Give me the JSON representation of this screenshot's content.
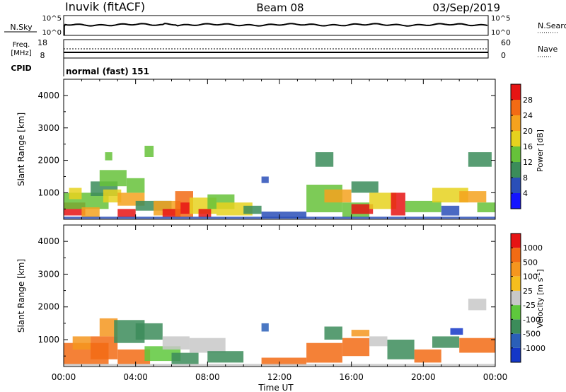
{
  "header": {
    "station": "Inuvik (fitACF)",
    "beam": "Beam 08",
    "date": "03/Sep/2019"
  },
  "strip": {
    "nsky_label": "N.Sky",
    "nsky_tick_top": "10^5",
    "nsky_tick_bottom": "10^0",
    "nsearch_label": "N.Search",
    "nsearch_tick_top": "10^5",
    "nsearch_tick_bottom": "10^0",
    "freq_label_1": "Freq.",
    "freq_label_2": "[MHz]",
    "freq_tick_top": "18",
    "freq_tick_bottom": "8",
    "nave_label": "Nave",
    "nave_tick_top": "60",
    "nave_tick_bottom": "0",
    "cpid_label": "CPID",
    "cpid_value": "normal (fast) 151"
  },
  "colors": {
    "power": [
      "#1414ff",
      "#2a4fb8",
      "#3b8c5a",
      "#66c23a",
      "#e6d21e",
      "#f5a21e",
      "#f26b14",
      "#e61414"
    ],
    "velocity": [
      "#1437c8",
      "#2a5fb8",
      "#3c8c5a",
      "#5ec83c",
      "#c8c8c8",
      "#f5be1e",
      "#f5961e",
      "#f26b14",
      "#e61414"
    ]
  },
  "colorbars": {
    "power": {
      "label": "Power [dB]",
      "ticks": [
        "28",
        "24",
        "20",
        "16",
        "12",
        "8",
        "4"
      ]
    },
    "velocity": {
      "label_main": "Velocity  [m s",
      "label_sup": "-1",
      "label_end": "]",
      "ticks": [
        "1000",
        "500",
        "100",
        "25",
        "-25",
        "-100",
        "-500",
        "-1000"
      ]
    }
  },
  "chart_data": [
    {
      "type": "heatmap",
      "title": "Power",
      "xlabel": "Time UT",
      "ylabel": "Slant Range [km]",
      "x_ticks": [
        "00:00",
        "04:00",
        "08:00",
        "12:00",
        "16:00",
        "20:00",
        "00:00"
      ],
      "xlim": [
        0,
        24
      ],
      "ylim": [
        180,
        4500
      ],
      "y_ticks": [
        1000,
        2000,
        3000,
        4000
      ],
      "colorscale": "power",
      "cells": [
        {
          "t0": 0.0,
          "t1": 1.2,
          "r0": 300,
          "r1": 700,
          "c": 7
        },
        {
          "t0": 0.0,
          "t1": 2.5,
          "r0": 500,
          "r1": 1000,
          "c": 3
        },
        {
          "t0": 0.3,
          "t1": 1.0,
          "r0": 800,
          "r1": 1150,
          "c": 4
        },
        {
          "t0": 1.0,
          "t1": 2.0,
          "r0": 250,
          "r1": 550,
          "c": 5
        },
        {
          "t0": 1.5,
          "t1": 3.0,
          "r0": 900,
          "r1": 1350,
          "c": 2
        },
        {
          "t0": 2.0,
          "t1": 3.5,
          "r0": 1200,
          "r1": 1700,
          "c": 3
        },
        {
          "t0": 2.2,
          "t1": 3.2,
          "r0": 700,
          "r1": 1100,
          "c": 4
        },
        {
          "t0": 2.3,
          "t1": 2.7,
          "r0": 2000,
          "r1": 2250,
          "c": 3
        },
        {
          "t0": 3.0,
          "t1": 4.5,
          "r0": 600,
          "r1": 1000,
          "c": 5
        },
        {
          "t0": 3.0,
          "t1": 4.0,
          "r0": 250,
          "r1": 500,
          "c": 7
        },
        {
          "t0": 3.5,
          "t1": 4.5,
          "r0": 1000,
          "r1": 1450,
          "c": 3
        },
        {
          "t0": 4.0,
          "t1": 6.0,
          "r0": 450,
          "r1": 750,
          "c": 2
        },
        {
          "t0": 4.5,
          "t1": 5.0,
          "r0": 2100,
          "r1": 2450,
          "c": 3
        },
        {
          "t0": 5.0,
          "t1": 6.5,
          "r0": 300,
          "r1": 750,
          "c": 5
        },
        {
          "t0": 5.5,
          "t1": 6.5,
          "r0": 250,
          "r1": 500,
          "c": 7
        },
        {
          "t0": 6.2,
          "t1": 7.2,
          "r0": 250,
          "r1": 1050,
          "c": 6
        },
        {
          "t0": 6.5,
          "t1": 7.0,
          "r0": 350,
          "r1": 700,
          "c": 7
        },
        {
          "t0": 7.0,
          "t1": 8.5,
          "r0": 350,
          "r1": 850,
          "c": 4
        },
        {
          "t0": 7.5,
          "t1": 8.2,
          "r0": 250,
          "r1": 500,
          "c": 7
        },
        {
          "t0": 8.0,
          "t1": 9.5,
          "r0": 500,
          "r1": 950,
          "c": 3
        },
        {
          "t0": 8.5,
          "t1": 10.5,
          "r0": 300,
          "r1": 700,
          "c": 4
        },
        {
          "t0": 10.0,
          "t1": 11.0,
          "r0": 350,
          "r1": 600,
          "c": 2
        },
        {
          "t0": 11.0,
          "t1": 11.4,
          "r0": 1300,
          "r1": 1500,
          "c": 1
        },
        {
          "t0": 11.0,
          "t1": 13.5,
          "r0": 220,
          "r1": 420,
          "c": 1
        },
        {
          "t0": 13.5,
          "t1": 15.5,
          "r0": 400,
          "r1": 1250,
          "c": 3
        },
        {
          "t0": 14.0,
          "t1": 15.0,
          "r0": 1800,
          "r1": 2250,
          "c": 2
        },
        {
          "t0": 14.5,
          "t1": 16.0,
          "r0": 700,
          "r1": 1100,
          "c": 5
        },
        {
          "t0": 15.5,
          "t1": 17.0,
          "r0": 250,
          "r1": 700,
          "c": 3
        },
        {
          "t0": 16.0,
          "t1": 17.2,
          "r0": 350,
          "r1": 650,
          "c": 7
        },
        {
          "t0": 16.0,
          "t1": 17.5,
          "r0": 1000,
          "r1": 1350,
          "c": 2
        },
        {
          "t0": 17.0,
          "t1": 18.5,
          "r0": 500,
          "r1": 1000,
          "c": 4
        },
        {
          "t0": 18.2,
          "t1": 19.0,
          "r0": 300,
          "r1": 1000,
          "c": 7
        },
        {
          "t0": 19.0,
          "t1": 21.0,
          "r0": 400,
          "r1": 750,
          "c": 3
        },
        {
          "t0": 20.5,
          "t1": 22.5,
          "r0": 700,
          "r1": 1150,
          "c": 4
        },
        {
          "t0": 21.0,
          "t1": 22.0,
          "r0": 300,
          "r1": 600,
          "c": 1
        },
        {
          "t0": 22.0,
          "t1": 23.5,
          "r0": 700,
          "r1": 1050,
          "c": 5
        },
        {
          "t0": 22.5,
          "t1": 23.8,
          "r0": 1800,
          "r1": 2250,
          "c": 2
        },
        {
          "t0": 23.0,
          "t1": 24.0,
          "r0": 400,
          "r1": 700,
          "c": 3
        },
        {
          "t0": 0.0,
          "t1": 24.0,
          "r0": 200,
          "r1": 260,
          "c": 1
        }
      ]
    },
    {
      "type": "heatmap",
      "title": "Velocity",
      "xlabel": "Time UT",
      "ylabel": "Slant Range [km]",
      "x_ticks": [
        "00:00",
        "04:00",
        "08:00",
        "12:00",
        "16:00",
        "20:00",
        "00:00"
      ],
      "xlim": [
        0,
        24
      ],
      "ylim": [
        180,
        4500
      ],
      "y_ticks": [
        1000,
        2000,
        3000,
        4000
      ],
      "colorscale": "velocity",
      "cells": [
        {
          "t0": 0.0,
          "t1": 2.5,
          "r0": 250,
          "r1": 900,
          "c": 7
        },
        {
          "t0": 0.5,
          "t1": 1.5,
          "r0": 700,
          "r1": 1100,
          "c": 6
        },
        {
          "t0": 1.5,
          "t1": 3.0,
          "r0": 400,
          "r1": 1100,
          "c": 7
        },
        {
          "t0": 2.0,
          "t1": 3.0,
          "r0": 1100,
          "r1": 1650,
          "c": 6
        },
        {
          "t0": 2.8,
          "t1": 4.5,
          "r0": 900,
          "r1": 1600,
          "c": 2
        },
        {
          "t0": 3.0,
          "t1": 4.8,
          "r0": 250,
          "r1": 700,
          "c": 7
        },
        {
          "t0": 4.0,
          "t1": 5.5,
          "r0": 1000,
          "r1": 1500,
          "c": 2
        },
        {
          "t0": 4.5,
          "t1": 6.5,
          "r0": 350,
          "r1": 800,
          "c": 3
        },
        {
          "t0": 5.5,
          "t1": 7.0,
          "r0": 700,
          "r1": 1100,
          "c": 4
        },
        {
          "t0": 6.0,
          "t1": 7.5,
          "r0": 250,
          "r1": 600,
          "c": 2
        },
        {
          "t0": 7.0,
          "t1": 9.0,
          "r0": 600,
          "r1": 1050,
          "c": 4
        },
        {
          "t0": 8.0,
          "t1": 10.0,
          "r0": 300,
          "r1": 650,
          "c": 2
        },
        {
          "t0": 11.0,
          "t1": 11.4,
          "r0": 1250,
          "r1": 1500,
          "c": 1
        },
        {
          "t0": 11.0,
          "t1": 13.5,
          "r0": 220,
          "r1": 450,
          "c": 7
        },
        {
          "t0": 13.5,
          "t1": 15.5,
          "r0": 300,
          "r1": 900,
          "c": 7
        },
        {
          "t0": 14.5,
          "t1": 15.5,
          "r0": 1000,
          "r1": 1400,
          "c": 2
        },
        {
          "t0": 15.5,
          "t1": 17.0,
          "r0": 500,
          "r1": 1050,
          "c": 7
        },
        {
          "t0": 16.0,
          "t1": 17.0,
          "r0": 1100,
          "r1": 1300,
          "c": 6
        },
        {
          "t0": 17.0,
          "t1": 18.0,
          "r0": 800,
          "r1": 1100,
          "c": 4
        },
        {
          "t0": 18.0,
          "t1": 19.5,
          "r0": 400,
          "r1": 1000,
          "c": 2
        },
        {
          "t0": 19.5,
          "t1": 21.0,
          "r0": 300,
          "r1": 700,
          "c": 7
        },
        {
          "t0": 20.5,
          "t1": 22.0,
          "r0": 750,
          "r1": 1100,
          "c": 2
        },
        {
          "t0": 21.5,
          "t1": 22.2,
          "r0": 1150,
          "r1": 1350,
          "c": 0
        },
        {
          "t0": 22.0,
          "t1": 24.0,
          "r0": 600,
          "r1": 1050,
          "c": 7
        },
        {
          "t0": 22.5,
          "t1": 23.5,
          "r0": 1900,
          "r1": 2250,
          "c": 4
        },
        {
          "t0": 0.0,
          "t1": 24.0,
          "r0": 200,
          "r1": 260,
          "c": 4
        }
      ]
    }
  ]
}
